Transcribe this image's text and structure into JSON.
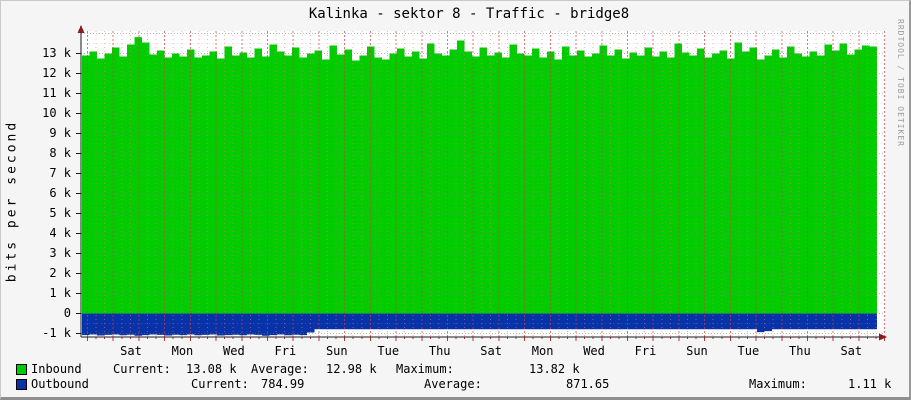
{
  "title": "Kalinka - sektor 8 - Traffic - bridge8",
  "watermark": "RRDTOOL / TOBI OETIKER",
  "y_axis": {
    "label": "bits per second",
    "ticks": [
      {
        "label": "13 k",
        "v": 13
      },
      {
        "label": "12 k",
        "v": 12
      },
      {
        "label": "11 k",
        "v": 11
      },
      {
        "label": "10 k",
        "v": 10
      },
      {
        "label": "9 k",
        "v": 9
      },
      {
        "label": "8 k",
        "v": 8
      },
      {
        "label": "7 k",
        "v": 7
      },
      {
        "label": "6 k",
        "v": 6
      },
      {
        "label": "5 k",
        "v": 5
      },
      {
        "label": "4 k",
        "v": 4
      },
      {
        "label": "3 k",
        "v": 3
      },
      {
        "label": "2 k",
        "v": 2
      },
      {
        "label": "1 k",
        "v": 1
      },
      {
        "label": "0",
        "v": 0
      },
      {
        "label": "-1 k",
        "v": -1
      }
    ]
  },
  "x_axis": {
    "ticks": [
      "Sat",
      "Mon",
      "Wed",
      "Fri",
      "Sun",
      "Tue",
      "Thu",
      "Sat",
      "Mon",
      "Wed",
      "Fri",
      "Sun",
      "Tue",
      "Thu",
      "Sat"
    ]
  },
  "legend": {
    "rows": [
      {
        "label": "Inbound",
        "current_label": "Current:",
        "current": "13.08 k",
        "average_label": "Average:",
        "average": "12.98 k",
        "maximum_label": "Maximum:",
        "maximum": "13.82 k"
      },
      {
        "label": "Outbound",
        "current_label": "Current:",
        "current": "784.99",
        "average_label": "Average:",
        "average": "871.65",
        "maximum_label": "Maximum:",
        "maximum": "1.11 k"
      }
    ]
  },
  "colors": {
    "inbound": "#00cc00",
    "outbound": "#0832a8",
    "plot_background": "#ffffff",
    "panel_background": "#f5f5f5",
    "grid_major_vertical": "rgba(210,60,60,0.7)",
    "grid_minor_vertical": "rgba(235,120,120,0.55)",
    "grid_horizontal": "rgba(120,120,120,0.55)",
    "grid_horizontal_minor": "rgba(150,150,150,0.3)",
    "axis": "#1a1a1a",
    "arrow": "#8b1a1a",
    "tick_red": "#c23333",
    "watermark_gray": "#9c9c9c"
  },
  "chart_data": {
    "type": "area",
    "title": "Kalinka - sektor 8 - Traffic - bridge8",
    "xlabel": "",
    "ylabel": "bits per second",
    "unit": "kbit/s",
    "ylim_k": [
      -1.18,
      14.12
    ],
    "grid": "on",
    "legend_position": "bottom-left",
    "x_tick_labels": [
      "Sat",
      "Mon",
      "Wed",
      "Fri",
      "Sun",
      "Tue",
      "Thu",
      "Sat",
      "Mon",
      "Wed",
      "Fri",
      "Sun",
      "Tue",
      "Thu",
      "Sat"
    ],
    "x_tick_spacing": "every 2 days over ~31 days",
    "series": [
      {
        "name": "Inbound",
        "color": "#00cc00",
        "orientation": "positive",
        "values_k": [
          12.9,
          13.1,
          12.75,
          13.0,
          13.3,
          12.85,
          13.45,
          13.82,
          13.55,
          12.95,
          13.15,
          12.8,
          13.0,
          12.85,
          13.2,
          12.8,
          12.9,
          13.1,
          12.75,
          13.35,
          12.9,
          13.05,
          12.8,
          13.25,
          12.85,
          13.45,
          13.1,
          12.9,
          13.3,
          12.8,
          13.0,
          13.15,
          12.7,
          13.4,
          12.95,
          13.2,
          12.65,
          12.9,
          13.35,
          12.8,
          12.7,
          13.0,
          13.25,
          12.85,
          13.1,
          12.75,
          13.5,
          13.0,
          12.9,
          13.2,
          13.65,
          13.1,
          12.85,
          13.3,
          12.9,
          13.05,
          12.8,
          13.45,
          13.0,
          12.9,
          13.25,
          12.8,
          13.1,
          12.7,
          13.35,
          12.9,
          13.15,
          12.85,
          13.0,
          13.4,
          12.9,
          13.2,
          12.75,
          13.05,
          12.9,
          13.3,
          12.85,
          13.1,
          12.8,
          13.5,
          13.05,
          12.9,
          13.25,
          12.8,
          13.0,
          13.15,
          12.75,
          13.55,
          13.1,
          13.3,
          12.7,
          12.9,
          13.2,
          12.8,
          13.35,
          13.0,
          12.85,
          13.1,
          12.9,
          13.45,
          13.15,
          13.5,
          12.95,
          13.2,
          13.4,
          13.35
        ]
      },
      {
        "name": "Outbound",
        "color": "#0832a8",
        "orientation": "negative",
        "values_k": [
          1.08,
          1.05,
          1.1,
          1.07,
          1.05,
          1.09,
          1.06,
          1.11,
          1.08,
          1.05,
          1.07,
          1.1,
          1.06,
          1.08,
          1.05,
          1.09,
          1.07,
          1.05,
          1.1,
          1.08,
          1.06,
          1.09,
          1.05,
          1.07,
          1.11,
          1.08,
          1.05,
          1.09,
          1.06,
          1.08,
          0.95,
          0.79,
          0.79,
          0.79,
          0.79,
          0.79,
          0.79,
          0.79,
          0.79,
          0.79,
          0.79,
          0.79,
          0.79,
          0.79,
          0.79,
          0.79,
          0.79,
          0.79,
          0.79,
          0.79,
          0.79,
          0.79,
          0.79,
          0.79,
          0.79,
          0.79,
          0.79,
          0.79,
          0.79,
          0.79,
          0.79,
          0.79,
          0.79,
          0.79,
          0.79,
          0.79,
          0.79,
          0.79,
          0.79,
          0.79,
          0.79,
          0.79,
          0.79,
          0.79,
          0.79,
          0.79,
          0.79,
          0.79,
          0.79,
          0.79,
          0.79,
          0.79,
          0.79,
          0.79,
          0.79,
          0.79,
          0.79,
          0.79,
          0.79,
          0.79,
          0.93,
          0.88,
          0.79,
          0.79,
          0.79,
          0.79,
          0.79,
          0.79,
          0.79,
          0.79,
          0.79,
          0.79,
          0.79,
          0.79,
          0.79,
          0.79
        ]
      }
    ],
    "stats": {
      "inbound": {
        "current": "13.08 k",
        "average": "12.98 k",
        "maximum": "13.82 k"
      },
      "outbound": {
        "current": "784.99",
        "average": "871.65",
        "maximum": "1.11 k"
      }
    }
  }
}
